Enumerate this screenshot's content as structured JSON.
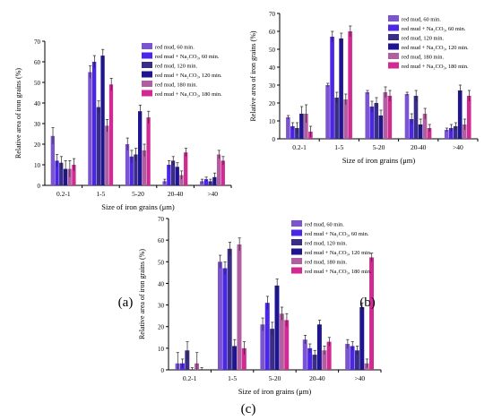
{
  "figure": {
    "panels": [
      "(a)",
      "(b)",
      "(c)"
    ]
  },
  "colors": {
    "series": [
      "#7b54cf",
      "#4b26e6",
      "#3a2d86",
      "#1f1590",
      "#b25fa2",
      "#d22a93"
    ],
    "error_bar": "#222222",
    "axis": "#000000"
  },
  "chart_data": [
    {
      "type": "bar",
      "panel_label": "(a)",
      "xlabel": "Size of iron grains (μm)",
      "ylabel": "Relative area of iron grains (%)",
      "categories": [
        "0.2-1",
        "1-5",
        "5-20",
        "20-40",
        ">40"
      ],
      "ylim": [
        0,
        70
      ],
      "yticks": [
        0,
        10,
        20,
        30,
        40,
        50,
        60,
        70
      ],
      "legend_position": "top-right",
      "series": [
        {
          "name": "red mud, 60 min.",
          "values": [
            24,
            55,
            20,
            2,
            2
          ],
          "errors": [
            4,
            3,
            3,
            1,
            1
          ]
        },
        {
          "name": "red mud + Na₂CO₃, 60 min.",
          "values": [
            12,
            60,
            14,
            10,
            3
          ],
          "errors": [
            3,
            3,
            3,
            2,
            1
          ]
        },
        {
          "name": "red mud, 120 min.",
          "values": [
            11,
            38,
            15,
            12,
            2
          ],
          "errors": [
            3,
            3,
            3,
            2,
            1
          ]
        },
        {
          "name": "red mud + Na₂CO₃, 120 min.",
          "values": [
            8,
            63,
            36,
            9,
            4
          ],
          "errors": [
            4,
            3,
            3,
            2,
            2
          ]
        },
        {
          "name": "red mud, 180 min.",
          "values": [
            8,
            29,
            17,
            5,
            15
          ],
          "errors": [
            4,
            3,
            3,
            2,
            2
          ]
        },
        {
          "name": "red mud + Na₂CO₃, 180 min.",
          "values": [
            10,
            49,
            33,
            16,
            12
          ],
          "errors": [
            3,
            3,
            3,
            2,
            2
          ]
        }
      ]
    },
    {
      "type": "bar",
      "panel_label": "(b)",
      "xlabel": "Size of iron grains (μm)",
      "ylabel": "Relative area of iron grains (%)",
      "categories": [
        "0.2-1",
        "1-5",
        "5-20",
        "20-40",
        ">40"
      ],
      "ylim": [
        0,
        70
      ],
      "yticks": [
        0,
        10,
        20,
        30,
        40,
        50,
        60,
        70
      ],
      "legend_position": "top-right",
      "series": [
        {
          "name": "red mud, 60 min.",
          "values": [
            12,
            30,
            26,
            25,
            5
          ],
          "errors": [
            1,
            1,
            1,
            1,
            1
          ]
        },
        {
          "name": "red mud + Na₂CO₃, 60 min.",
          "values": [
            7,
            57,
            18,
            11,
            6
          ],
          "errors": [
            2,
            3,
            3,
            3,
            2
          ]
        },
        {
          "name": "red mud, 120 min.",
          "values": [
            6,
            23,
            20,
            24,
            7
          ],
          "errors": [
            3,
            3,
            3,
            3,
            2
          ]
        },
        {
          "name": "red mud + Na₂CO₃, 120 min.",
          "values": [
            14,
            56,
            13,
            8,
            27
          ],
          "errors": [
            4,
            3,
            3,
            3,
            3
          ]
        },
        {
          "name": "red mud, 180 min.",
          "values": [
            14,
            22,
            26,
            14,
            8
          ],
          "errors": [
            5,
            3,
            3,
            3,
            3
          ]
        },
        {
          "name": "red mud + Na₂CO₃, 180 min.",
          "values": [
            4,
            60,
            24,
            6,
            24
          ],
          "errors": [
            3,
            3,
            3,
            2,
            3
          ]
        }
      ]
    },
    {
      "type": "bar",
      "panel_label": "(c)",
      "xlabel": "Size of iron grains (μm)",
      "ylabel": "Relative area of iron grains (%)",
      "categories": [
        "0.2-1",
        "1-5",
        "5-20",
        "20-40",
        ">40"
      ],
      "ylim": [
        0,
        70
      ],
      "yticks": [
        0,
        10,
        20,
        30,
        40,
        50,
        60,
        70
      ],
      "legend_position": "top-right",
      "series": [
        {
          "name": "red mud, 60 min.",
          "values": [
            3,
            50,
            21,
            14,
            12
          ],
          "errors": [
            5,
            3,
            3,
            2,
            2
          ]
        },
        {
          "name": "red mud + Na₂CO₃, 60 min.",
          "values": [
            3,
            47,
            31,
            10,
            11
          ],
          "errors": [
            2,
            3,
            3,
            2,
            2
          ]
        },
        {
          "name": "red mud, 120 min.",
          "values": [
            9,
            56,
            19,
            7,
            9
          ],
          "errors": [
            4,
            3,
            3,
            2,
            2
          ]
        },
        {
          "name": "red mud + Na₂CO₃, 120 min.",
          "values": [
            0,
            11,
            39,
            21,
            29
          ],
          "errors": [
            1,
            3,
            3,
            2,
            2
          ]
        },
        {
          "name": "red mud, 180 min.",
          "values": [
            3,
            58,
            26,
            9,
            3
          ],
          "errors": [
            5,
            3,
            3,
            2,
            2
          ]
        },
        {
          "name": "red mud + Na₂CO₃, 180 min.",
          "values": [
            0,
            10,
            23,
            13,
            52
          ],
          "errors": [
            1,
            3,
            3,
            2,
            2
          ]
        }
      ]
    }
  ]
}
